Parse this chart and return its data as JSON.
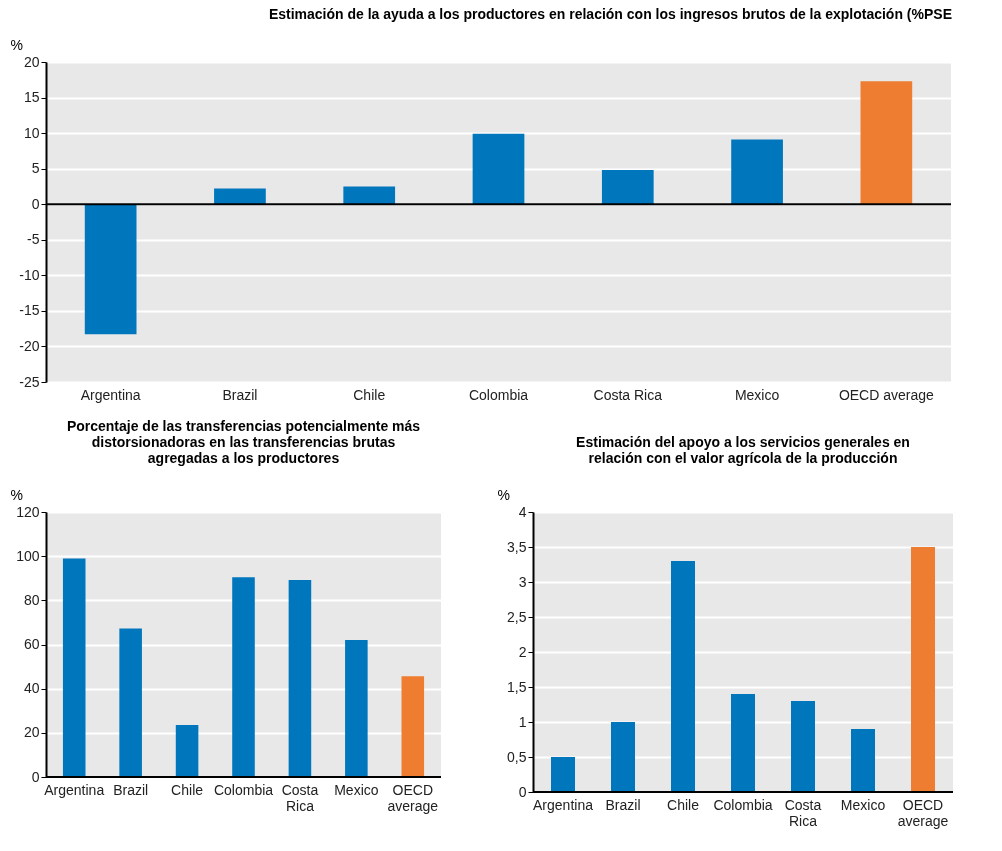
{
  "chart_data": [
    {
      "type": "bar",
      "title": "Estimación de la ayuda a los productores en relación con los ingresos brutos de la explotación (%PSE",
      "ylabel": "%",
      "categories": [
        "Argentina",
        "Brazil",
        "Chile",
        "Colombia",
        "Costa Rica",
        "Mexico",
        "OECD average"
      ],
      "values": [
        -18.3,
        2.2,
        2.5,
        9.9,
        4.8,
        9.1,
        17.3
      ],
      "colors": [
        "#0077bd",
        "#0077bd",
        "#0077bd",
        "#0077bd",
        "#0077bd",
        "#0077bd",
        "#ee7d31"
      ],
      "ylim": [
        -25,
        20
      ],
      "yticks": [
        -25,
        -20,
        -15,
        -10,
        -5,
        0,
        5,
        10,
        15,
        20
      ],
      "grid": "y"
    },
    {
      "type": "bar",
      "title": "Porcentaje de las transferencias potencialmente más distorsionadoras en las transferencias brutas agregadas a los productores",
      "ylabel": "%",
      "categories": [
        "Argentina",
        "Brazil",
        "Chile",
        "Colombia",
        "Costa Rica",
        "Mexico",
        "OECD average"
      ],
      "values": [
        99,
        67.2,
        23.5,
        90.5,
        89.2,
        62,
        45.6
      ],
      "colors": [
        "#0077bd",
        "#0077bd",
        "#0077bd",
        "#0077bd",
        "#0077bd",
        "#0077bd",
        "#ee7d31"
      ],
      "ylim": [
        0,
        120
      ],
      "yticks": [
        0,
        20,
        40,
        60,
        80,
        100,
        120
      ],
      "grid": "y"
    },
    {
      "type": "bar",
      "title": "Estimación del apoyo a los servicios generales en relación con el valor agrícola de la producción",
      "ylabel": "%",
      "categories": [
        "Argentina",
        "Brazil",
        "Chile",
        "Colombia",
        "Costa Rica",
        "Mexico",
        "OECD average"
      ],
      "values": [
        0.5,
        1.0,
        3.3,
        1.4,
        1.3,
        0.9,
        3.5
      ],
      "colors": [
        "#0077bd",
        "#0077bd",
        "#0077bd",
        "#0077bd",
        "#0077bd",
        "#0077bd",
        "#ee7d31"
      ],
      "ylim": [
        0,
        4
      ],
      "yticks": [
        0,
        {
          "value": 0.5,
          "label": "0,5"
        },
        1,
        {
          "value": 1.5,
          "label": "1,5"
        },
        2,
        {
          "value": 2.5,
          "label": "2,5"
        },
        3,
        {
          "value": 3.5,
          "label": "3,5"
        },
        4
      ],
      "grid": "y"
    }
  ]
}
